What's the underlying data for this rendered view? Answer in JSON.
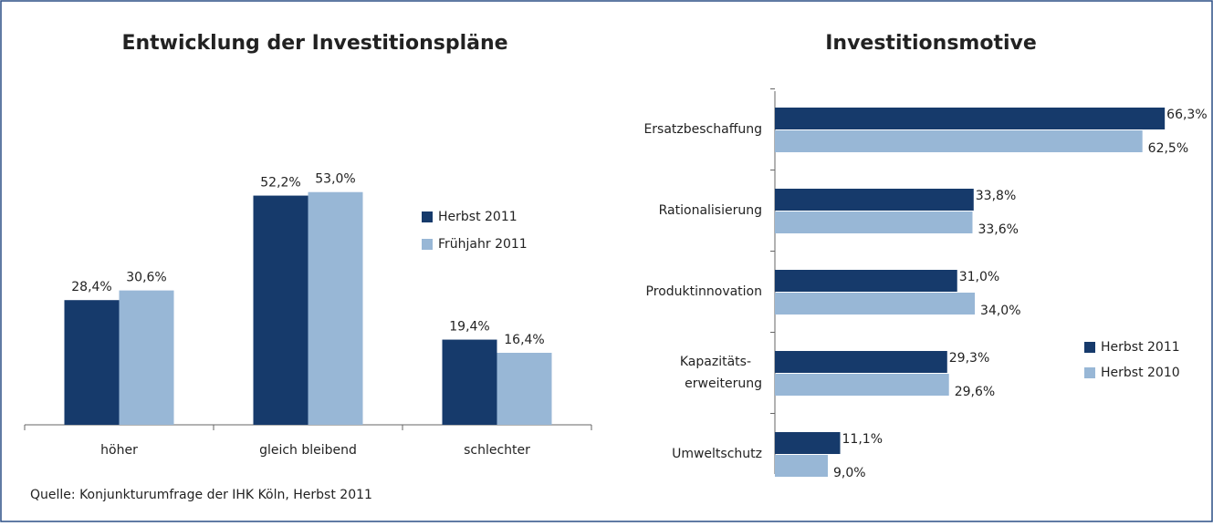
{
  "chart_data": [
    {
      "type": "bar",
      "title": "Entwicklung der Investitionspläne",
      "categories": [
        "höher",
        "gleich bleibend",
        "schlechter"
      ],
      "series": [
        {
          "name": "Herbst 2011",
          "color": "#163a6b",
          "values": [
            28.4,
            52.2,
            19.4
          ],
          "value_labels": [
            "28,4%",
            "52,2%",
            "19,4%"
          ]
        },
        {
          "name": "Frühjahr 2011",
          "color": "#98b7d6",
          "values": [
            30.6,
            53.0,
            16.4
          ],
          "value_labels": [
            "30,6%",
            "53,0%",
            "16,4%"
          ]
        }
      ],
      "ylim": [
        0,
        60
      ],
      "legend": "right",
      "source": "Quelle: Konjunkturumfrage der IHK Köln, Herbst 2011"
    },
    {
      "type": "hbar",
      "title": "Investitionsmotive",
      "categories": [
        "Ersatzbeschaffung",
        "Rationalisierung",
        "Produktinnovation",
        "Kapazitäts-\nerweiterung",
        "Umweltschutz"
      ],
      "series": [
        {
          "name": "Herbst 2011",
          "color": "#163a6b",
          "values": [
            66.3,
            33.8,
            31.0,
            29.3,
            11.1
          ],
          "value_labels": [
            "66,3%",
            "33,8%",
            "31,0%",
            "29,3%",
            "11,1%"
          ]
        },
        {
          "name": "Herbst 2010",
          "color": "#98b7d6",
          "values": [
            62.5,
            33.6,
            34.0,
            29.6,
            9.0
          ],
          "value_labels": [
            "62,5%",
            "33,6%",
            "34,0%",
            "29,6%",
            "9,0%"
          ]
        }
      ],
      "xlim": [
        0,
        70
      ],
      "legend": "right"
    }
  ]
}
